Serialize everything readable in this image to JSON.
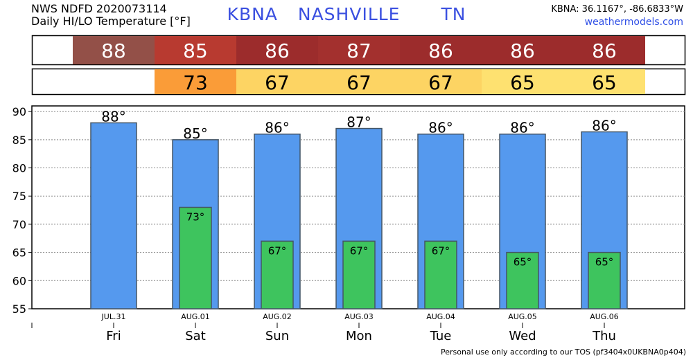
{
  "header": {
    "line1": "NWS NDFD 2020073114",
    "line2": "Daily HI/LO Temperature [°F]",
    "station": "KBNA",
    "city": "NASHVILLE",
    "state": "TN",
    "coords": "KBNA: 36.1167°, -86.6833°W",
    "site": "weathermodels.com"
  },
  "footer": "Personal use only according to our TOS (pf3404x0UKBNA0p404)",
  "colors": {
    "hi_bar": "#5599ee",
    "lo_bar": "#3ec45e",
    "hi_strip": [
      "#935048",
      "#b83a30",
      "#9c2c2c",
      "#a3302e",
      "#9c2c2c",
      "#9c2c2c",
      "#9c2c2c"
    ],
    "lo_strip": [
      null,
      "#fa9c38",
      "#fdd463",
      "#fdd463",
      "#fdd463",
      "#fee170",
      "#fee170"
    ]
  },
  "chart_data": {
    "type": "bar",
    "categories": [
      "Fri",
      "Sat",
      "Sun",
      "Mon",
      "Tue",
      "Wed",
      "Thu"
    ],
    "dates": [
      "JUL.31",
      "AUG.01",
      "AUG.02",
      "AUG.03",
      "AUG.04",
      "AUG.05",
      "AUG.06"
    ],
    "series": [
      {
        "values": [
          88,
          85,
          86,
          87,
          86,
          86,
          86.4
        ]
      },
      {
        "values": [
          null,
          73,
          67,
          67,
          67,
          65,
          65
        ]
      }
    ],
    "hi_labels": [
      "88°",
      "85°",
      "86°",
      "87°",
      "86°",
      "86°",
      "86°"
    ],
    "lo_labels": [
      "",
      "73°",
      "67°",
      "67°",
      "67°",
      "65°",
      "65°"
    ],
    "hi_strip_labels": [
      "88",
      "85",
      "86",
      "87",
      "86",
      "86",
      "86"
    ],
    "lo_strip_labels": [
      "",
      "73",
      "67",
      "67",
      "67",
      "65",
      "65"
    ],
    "yticks": [
      "55",
      "60",
      "65",
      "70",
      "75",
      "80",
      "85",
      "90"
    ],
    "ylim": [
      55,
      91
    ]
  }
}
